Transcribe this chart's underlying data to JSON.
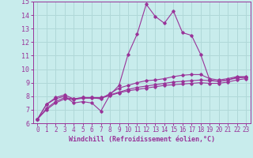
{
  "xlabel": "Windchill (Refroidissement éolien,°C)",
  "xlim": [
    -0.5,
    23.5
  ],
  "ylim": [
    6,
    15
  ],
  "yticks": [
    6,
    7,
    8,
    9,
    10,
    11,
    12,
    13,
    14,
    15
  ],
  "xticks": [
    0,
    1,
    2,
    3,
    4,
    5,
    6,
    7,
    8,
    9,
    10,
    11,
    12,
    13,
    14,
    15,
    16,
    17,
    18,
    19,
    20,
    21,
    22,
    23
  ],
  "background_color": "#c8ecec",
  "grid_color": "#b0d8d8",
  "line_color": "#993399",
  "series": [
    [
      6.3,
      7.4,
      7.8,
      8.0,
      7.5,
      7.6,
      7.5,
      6.9,
      8.1,
      8.8,
      11.1,
      12.6,
      14.8,
      13.9,
      13.4,
      14.3,
      12.7,
      12.5,
      11.1,
      9.2,
      9.1,
      9.2,
      9.4,
      9.4
    ],
    [
      6.3,
      7.4,
      7.9,
      8.1,
      7.8,
      7.9,
      7.9,
      7.8,
      8.2,
      8.6,
      8.8,
      9.0,
      9.15,
      9.2,
      9.3,
      9.45,
      9.55,
      9.6,
      9.6,
      9.3,
      9.2,
      9.3,
      9.45,
      9.45
    ],
    [
      6.3,
      7.1,
      7.6,
      7.9,
      7.8,
      7.9,
      7.9,
      7.9,
      8.1,
      8.3,
      8.5,
      8.65,
      8.75,
      8.85,
      8.95,
      9.05,
      9.1,
      9.15,
      9.2,
      9.15,
      9.1,
      9.2,
      9.35,
      9.4
    ],
    [
      6.3,
      7.0,
      7.5,
      7.8,
      7.75,
      7.85,
      7.85,
      7.85,
      8.05,
      8.25,
      8.4,
      8.5,
      8.6,
      8.7,
      8.8,
      8.85,
      8.9,
      8.95,
      9.0,
      8.95,
      8.95,
      9.05,
      9.2,
      9.3
    ]
  ],
  "marker_series": [
    0,
    1,
    2,
    3
  ]
}
